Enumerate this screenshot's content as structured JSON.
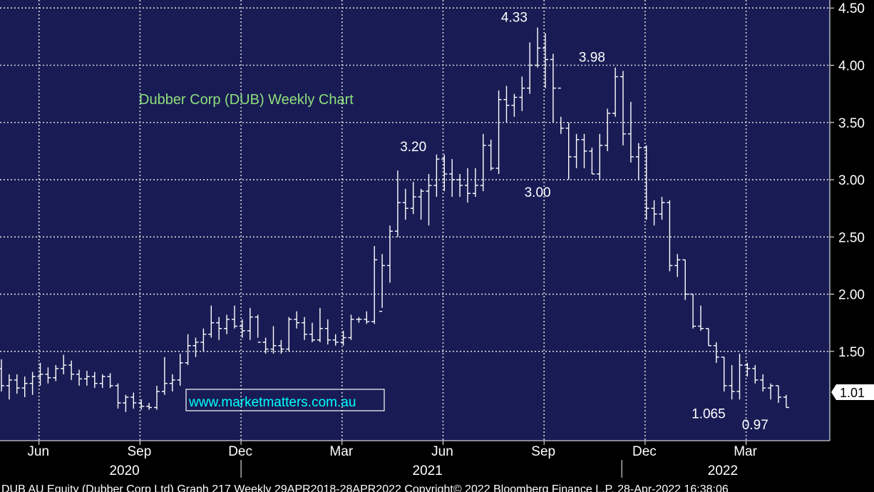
{
  "chart_data": {
    "type": "ohlc",
    "title": "Dubber Corp (DUB) Weekly Chart",
    "watermark": "www.marketmatters.com.au",
    "footer": "DUB AU Equity (Dubber Corp Ltd) Graph 217  Weekly 29APR2018-28APR2022  Copyright© 2022 Bloomberg Finance L.P.  28-Apr-2022 16:38:06",
    "y_ticks": [
      "4.50",
      "4.00",
      "3.50",
      "3.00",
      "2.50",
      "2.00",
      "1.50"
    ],
    "ylim": [
      0.72,
      4.57
    ],
    "last_price": "1.01",
    "x_month_labels": [
      {
        "label": "Jun",
        "week": 3
      },
      {
        "label": "Sep",
        "week": 16
      },
      {
        "label": "Dec",
        "week": 29
      },
      {
        "label": "Mar",
        "week": 42
      },
      {
        "label": "Jun",
        "week": 55
      },
      {
        "label": "Sep",
        "week": 68
      },
      {
        "label": "Dec",
        "week": 81
      },
      {
        "label": "Mar",
        "week": 94
      }
    ],
    "x_year_labels": [
      {
        "label": "2020",
        "week": 14
      },
      {
        "label": "2021",
        "week": 53
      },
      {
        "label": "2022",
        "week": 91
      }
    ],
    "annotations": [
      {
        "text": "4.33",
        "week": 66,
        "value": 4.33,
        "pos": "above"
      },
      {
        "text": "3.98",
        "week": 76,
        "value": 3.98,
        "pos": "above"
      },
      {
        "text": "3.20",
        "week": 53,
        "value": 3.2,
        "pos": "above"
      },
      {
        "text": "3.00",
        "week": 69,
        "value": 3.0,
        "pos": "below"
      },
      {
        "text": "1.065",
        "week": 91,
        "value": 1.065,
        "pos": "below"
      },
      {
        "text": "0.97",
        "week": 97,
        "value": 0.97,
        "pos": "below"
      }
    ],
    "bars": [
      [
        1.35,
        1.43,
        1.15,
        1.2
      ],
      [
        1.2,
        1.3,
        1.08,
        1.25
      ],
      [
        1.25,
        1.3,
        1.13,
        1.18
      ],
      [
        1.18,
        1.28,
        1.1,
        1.22
      ],
      [
        1.22,
        1.32,
        1.12,
        1.28
      ],
      [
        1.28,
        1.4,
        1.2,
        1.3
      ],
      [
        1.3,
        1.36,
        1.22,
        1.27
      ],
      [
        1.27,
        1.38,
        1.24,
        1.35
      ],
      [
        1.35,
        1.47,
        1.3,
        1.38
      ],
      [
        1.38,
        1.42,
        1.25,
        1.3
      ],
      [
        1.3,
        1.34,
        1.2,
        1.26
      ],
      [
        1.26,
        1.33,
        1.2,
        1.28
      ],
      [
        1.28,
        1.32,
        1.18,
        1.22
      ],
      [
        1.22,
        1.3,
        1.18,
        1.28
      ],
      [
        1.28,
        1.31,
        1.18,
        1.2
      ],
      [
        1.2,
        1.22,
        1.0,
        1.05
      ],
      [
        1.05,
        1.12,
        0.97,
        1.1
      ],
      [
        1.1,
        1.14,
        1.0,
        1.05
      ],
      [
        1.05,
        1.08,
        0.99,
        1.02
      ],
      [
        1.02,
        1.05,
        0.99,
        1.01
      ],
      [
        1.01,
        1.2,
        0.99,
        1.15
      ],
      [
        1.15,
        1.45,
        1.12,
        1.22
      ],
      [
        1.22,
        1.3,
        1.15,
        1.25
      ],
      [
        1.25,
        1.48,
        1.2,
        1.4
      ],
      [
        1.4,
        1.65,
        1.38,
        1.55
      ],
      [
        1.55,
        1.62,
        1.45,
        1.58
      ],
      [
        1.58,
        1.7,
        1.5,
        1.65
      ],
      [
        1.65,
        1.9,
        1.62,
        1.75
      ],
      [
        1.75,
        1.8,
        1.6,
        1.7
      ],
      [
        1.7,
        1.82,
        1.65,
        1.78
      ],
      [
        1.78,
        1.9,
        1.7,
        1.72
      ],
      [
        1.72,
        1.78,
        1.62,
        1.68
      ],
      [
        1.68,
        1.88,
        1.6,
        1.8
      ],
      [
        1.8,
        1.82,
        1.62,
        1.58
      ],
      [
        1.58,
        1.62,
        1.48,
        1.52
      ],
      [
        1.52,
        1.72,
        1.48,
        1.55
      ],
      [
        1.55,
        1.6,
        1.48,
        1.52
      ],
      [
        1.52,
        1.8,
        1.5,
        1.78
      ],
      [
        1.78,
        1.85,
        1.7,
        1.75
      ],
      [
        1.75,
        1.8,
        1.6,
        1.65
      ],
      [
        1.65,
        1.75,
        1.58,
        1.6
      ],
      [
        1.6,
        1.88,
        1.58,
        1.7
      ],
      [
        1.7,
        1.78,
        1.56,
        1.6
      ],
      [
        1.6,
        1.65,
        1.55,
        1.58
      ],
      [
        1.58,
        1.68,
        1.55,
        1.62
      ],
      [
        1.62,
        1.82,
        1.6,
        1.78
      ],
      [
        1.78,
        1.8,
        1.75,
        1.78
      ],
      [
        1.78,
        1.85,
        1.74,
        1.76
      ],
      [
        1.76,
        2.42,
        1.74,
        2.3
      ],
      [
        1.85,
        2.35,
        1.88,
        2.25
      ],
      [
        2.25,
        2.6,
        2.1,
        2.55
      ],
      [
        2.55,
        3.08,
        2.5,
        2.8
      ],
      [
        2.8,
        2.92,
        2.65,
        2.75
      ],
      [
        2.75,
        2.98,
        2.7,
        2.85
      ],
      [
        2.85,
        2.92,
        2.65,
        2.9
      ],
      [
        2.9,
        3.05,
        2.6,
        2.95
      ],
      [
        2.95,
        3.22,
        2.85,
        3.18
      ],
      [
        3.18,
        3.22,
        2.9,
        3.05
      ],
      [
        3.05,
        3.18,
        2.85,
        3.0
      ],
      [
        3.0,
        3.05,
        2.85,
        2.95
      ],
      [
        2.95,
        3.1,
        2.8,
        2.88
      ],
      [
        2.88,
        3.1,
        2.85,
        2.95
      ],
      [
        2.95,
        3.4,
        2.9,
        3.3
      ],
      [
        3.3,
        3.35,
        3.08,
        3.1
      ],
      [
        3.1,
        3.78,
        3.05,
        3.7
      ],
      [
        3.7,
        3.82,
        3.5,
        3.65
      ],
      [
        3.65,
        3.75,
        3.55,
        3.72
      ],
      [
        3.72,
        3.9,
        3.6,
        3.8
      ],
      [
        3.8,
        4.2,
        3.75,
        4.0
      ],
      [
        4.0,
        4.33,
        3.98,
        4.15
      ],
      [
        4.15,
        4.28,
        3.8,
        4.05
      ],
      [
        4.05,
        4.1,
        3.5,
        3.8
      ],
      [
        3.8,
        3.55,
        3.4,
        3.45
      ],
      [
        3.45,
        3.5,
        3.0,
        3.2
      ],
      [
        3.2,
        3.4,
        3.1,
        3.35
      ],
      [
        3.35,
        3.4,
        3.1,
        3.25
      ],
      [
        3.25,
        3.28,
        3.05,
        3.05
      ],
      [
        3.05,
        3.4,
        3.0,
        3.3
      ],
      [
        3.3,
        3.62,
        3.25,
        3.58
      ],
      [
        3.58,
        3.98,
        3.55,
        3.9
      ],
      [
        3.9,
        3.95,
        3.3,
        3.4
      ],
      [
        3.4,
        3.68,
        3.15,
        3.2
      ],
      [
        3.2,
        3.32,
        3.0,
        3.28
      ],
      [
        3.28,
        3.3,
        2.65,
        2.75
      ],
      [
        2.75,
        2.82,
        2.6,
        2.7
      ],
      [
        2.7,
        2.85,
        2.65,
        2.8
      ],
      [
        2.8,
        2.82,
        2.2,
        2.25
      ],
      [
        2.25,
        2.35,
        2.15,
        2.3
      ],
      [
        2.3,
        2.3,
        1.95,
        2.0
      ],
      [
        2.0,
        2.0,
        1.7,
        1.72
      ],
      [
        1.72,
        1.9,
        1.68,
        1.7
      ],
      [
        1.7,
        1.7,
        1.55,
        1.55
      ],
      [
        1.55,
        1.58,
        1.4,
        1.45
      ],
      [
        1.45,
        1.45,
        1.15,
        1.2
      ],
      [
        1.2,
        1.38,
        1.08,
        1.15
      ],
      [
        1.15,
        1.48,
        1.08,
        1.38
      ],
      [
        1.38,
        1.4,
        1.28,
        1.35
      ],
      [
        1.35,
        1.38,
        1.22,
        1.25
      ],
      [
        1.25,
        1.3,
        1.15,
        1.18
      ],
      [
        1.18,
        1.22,
        1.08,
        1.2
      ],
      [
        1.2,
        1.2,
        1.05,
        1.1
      ],
      [
        1.1,
        1.12,
        1.01,
        1.01
      ]
    ]
  }
}
